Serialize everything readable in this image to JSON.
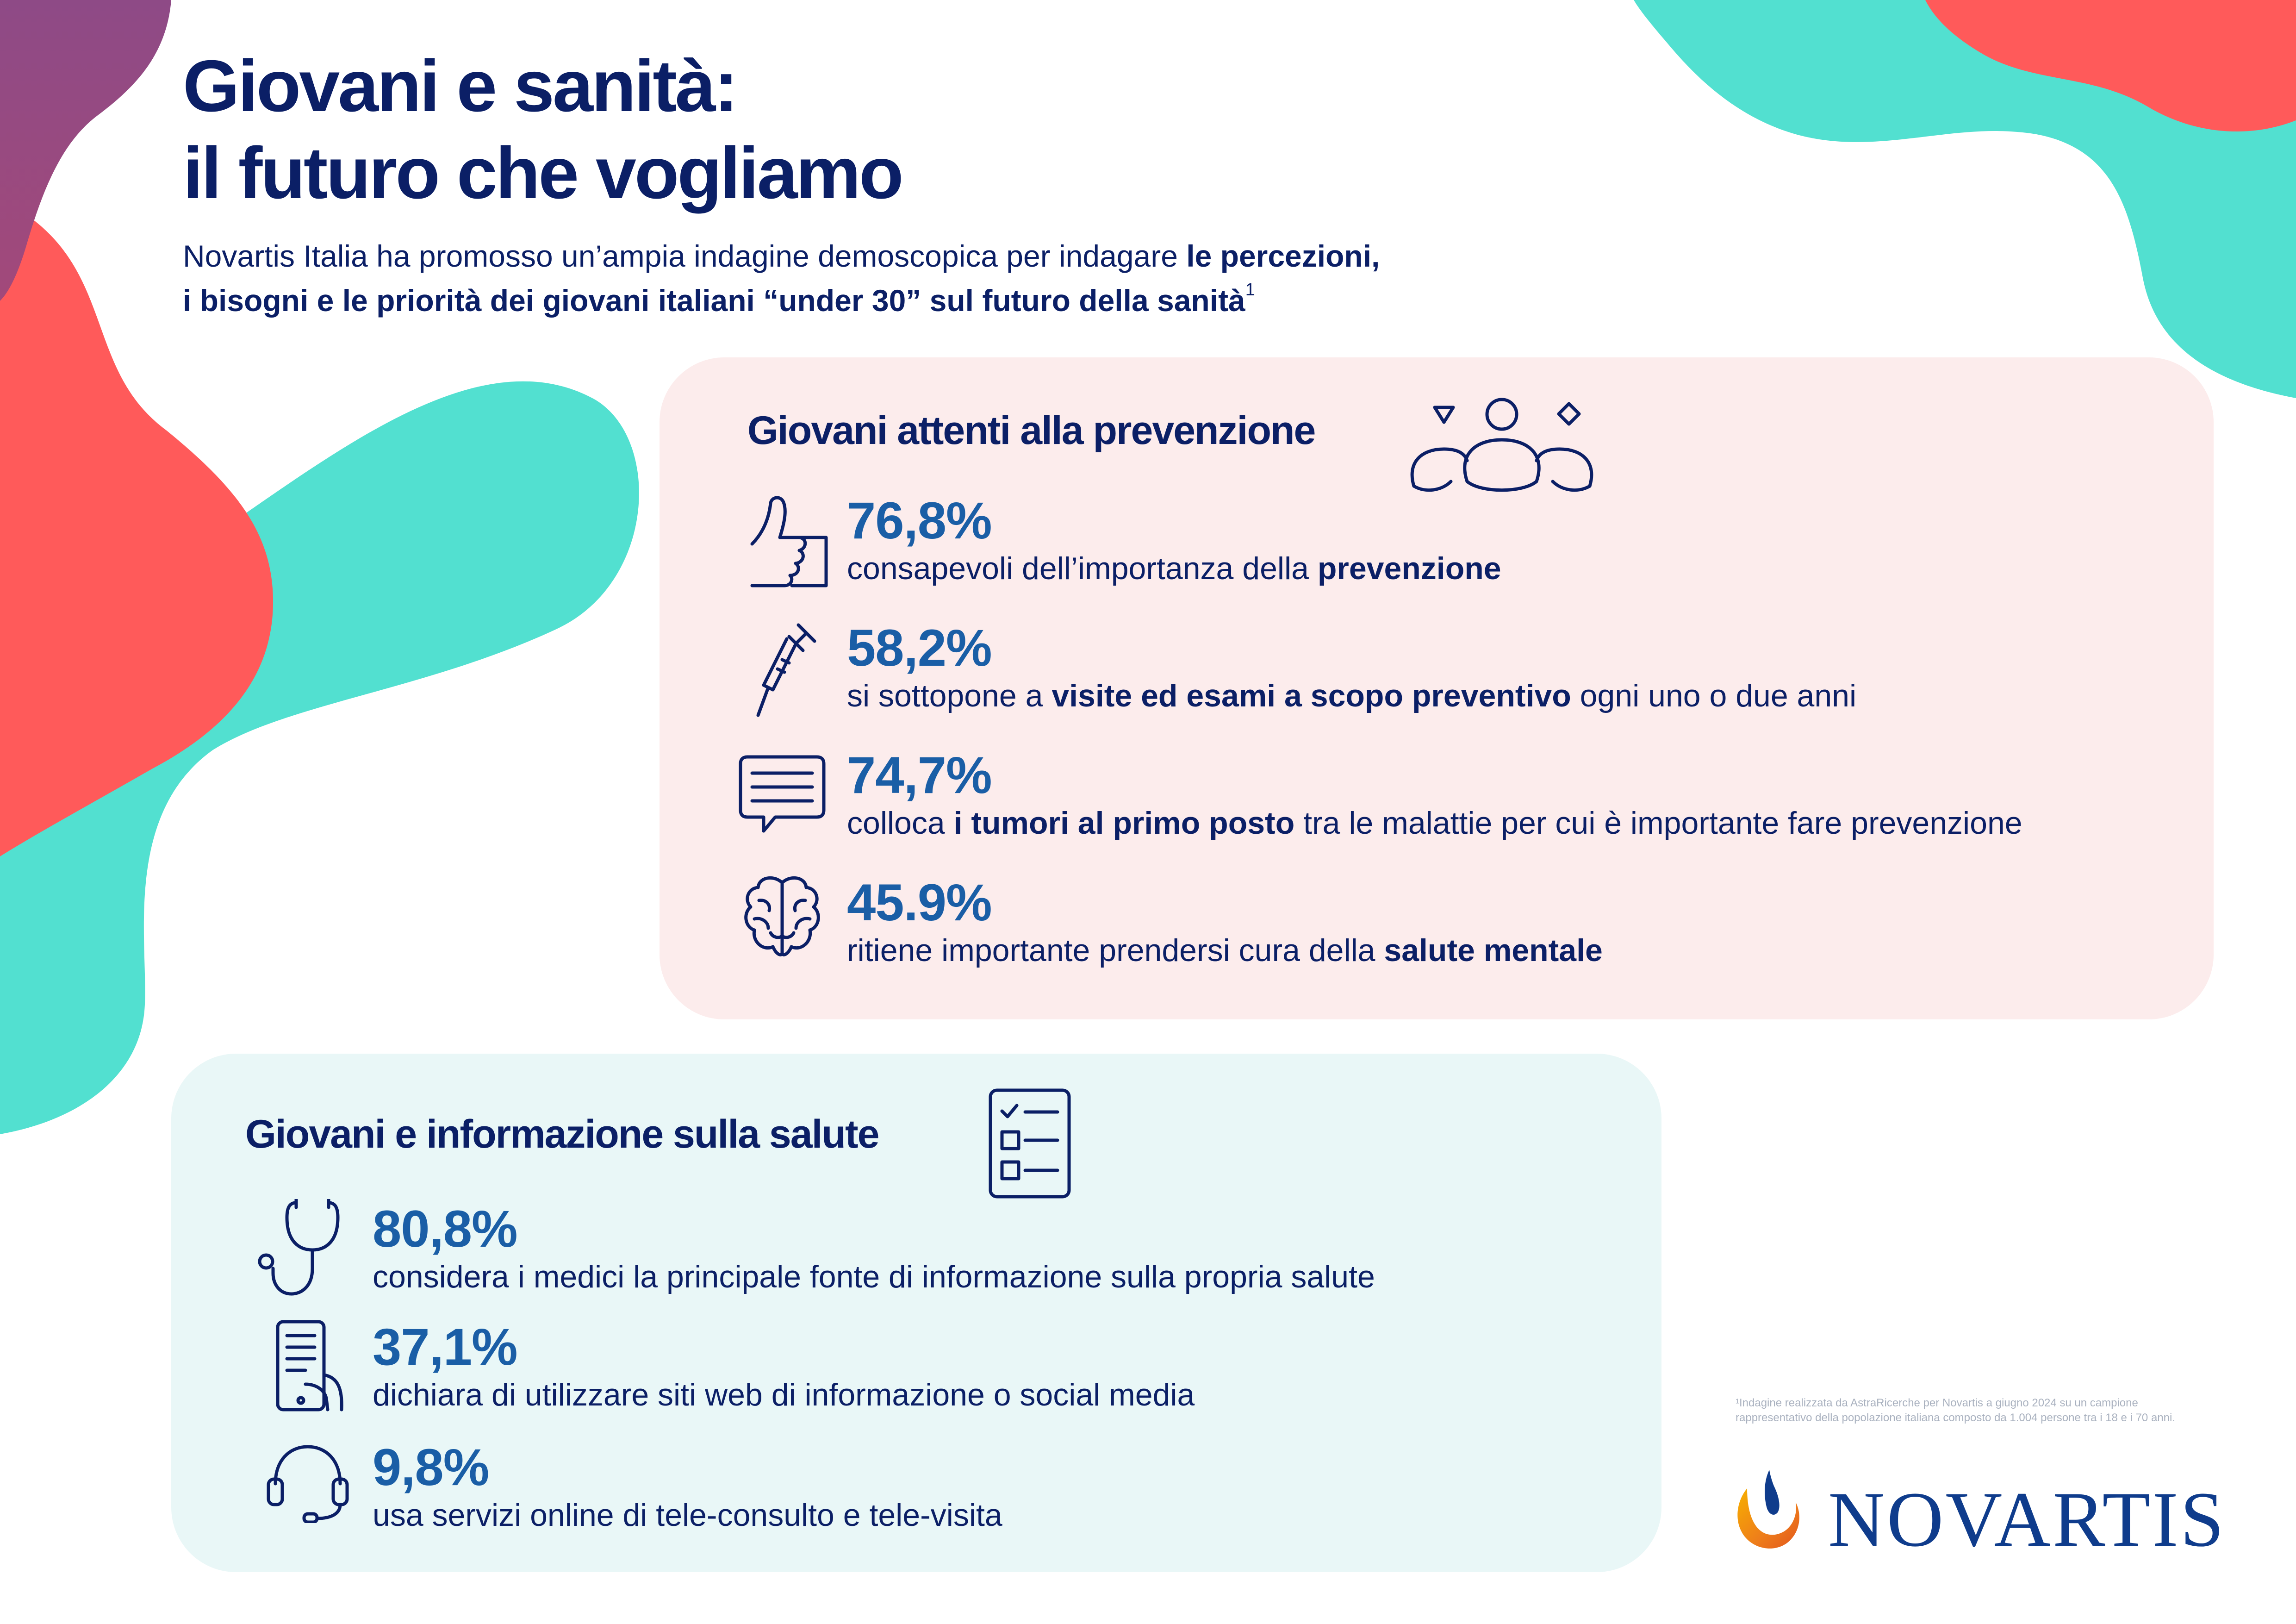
{
  "colors": {
    "navy": "#0b1f66",
    "stat_blue": "#1a5ea6",
    "coral": "#ff5a5a",
    "teal": "#52e0d0",
    "purple": "#8e4a86",
    "card_pink": "#fcecec",
    "card_teal": "#e9f7f7"
  },
  "header": {
    "title_line1": "Giovani e sanità:",
    "title_line2": "il futuro che vogliamo",
    "intro": {
      "line1_regular": "Novartis Italia ha promosso un’ampia indagine demoscopica per indagare ",
      "line1_bold": "le percezioni,",
      "line2_bold": "i bisogni e le priorità dei giovani italiani “under 30” sul futuro della sanità",
      "line2_sup": "1"
    }
  },
  "prevention": {
    "title": "Giovani attenti alla prevenzione",
    "title_icon": "people-group-icon",
    "stats": [
      {
        "icon": "thumbs-up-icon",
        "value": "76,8%",
        "desc_parts": [
          {
            "text": "consapevoli dell’importanza della ",
            "bold": false
          },
          {
            "text": "prevenzione",
            "bold": true
          }
        ]
      },
      {
        "icon": "syringe-icon",
        "value": "58,2%",
        "desc_parts": [
          {
            "text": "si sottopone a ",
            "bold": false
          },
          {
            "text": "visite ed esami a scopo preventivo",
            "bold": true
          },
          {
            "text": " ogni uno o due anni",
            "bold": false
          }
        ]
      },
      {
        "icon": "chat-bubble-icon",
        "value": "74,7%",
        "desc_parts": [
          {
            "text": "colloca ",
            "bold": false
          },
          {
            "text": "i tumori al primo posto",
            "bold": true
          },
          {
            "text": " tra le malattie per cui è importante fare prevenzione",
            "bold": false
          }
        ]
      },
      {
        "icon": "brain-icon",
        "value": "45.9%",
        "desc_parts": [
          {
            "text": "ritiene importante prendersi cura della ",
            "bold": false
          },
          {
            "text": "salute mentale",
            "bold": true
          }
        ]
      }
    ]
  },
  "information": {
    "title": "Giovani e informazione sulla salute",
    "title_icon": "checklist-icon",
    "stats": [
      {
        "icon": "stethoscope-icon",
        "value": "80,8%",
        "desc_parts": [
          {
            "text": "considera i medici la principale fonte di informazione sulla propria salute",
            "bold": false
          }
        ]
      },
      {
        "icon": "smartphone-icon",
        "value": "37,1%",
        "desc_parts": [
          {
            "text": "dichiara di utilizzare siti web di informazione o social media",
            "bold": false
          }
        ]
      },
      {
        "icon": "headset-icon",
        "value": "9,8%",
        "desc_parts": [
          {
            "text": "usa servizi online di tele-consulto e tele-visita",
            "bold": false
          }
        ]
      }
    ]
  },
  "footnote": {
    "line1": "¹Indagine realizzata da AstraRicerche per Novartis a giugno 2024 su un campione",
    "line2": "rappresentativo della popolazione italiana composto da 1.004 persone tra i 18 e i 70 anni."
  },
  "logo": {
    "text": "NOVARTIS",
    "icon": "novartis-flame-icon"
  }
}
